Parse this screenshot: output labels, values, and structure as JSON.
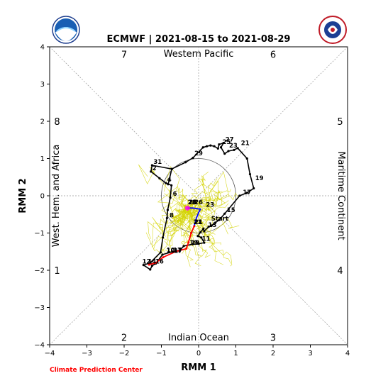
{
  "chart_data": {
    "type": "line",
    "title": "ECMWF | 2021-08-15 to 2021-08-29",
    "xlabel": "RMM 1",
    "ylabel": "RMM 2",
    "xlim": [
      -4,
      4
    ],
    "ylim": [
      -4,
      4
    ],
    "xticks": [
      "−4",
      "−3",
      "−2",
      "−1",
      "0",
      "1",
      "2",
      "3",
      "4"
    ],
    "yticks": [
      "−4",
      "−3",
      "−2",
      "−1",
      "0",
      "1",
      "2",
      "3",
      "4"
    ],
    "phase_numbers": [
      {
        "label": "7",
        "x": -2,
        "y": 3.8
      },
      {
        "label": "6",
        "x": 2,
        "y": 3.8
      },
      {
        "label": "8",
        "x": -3.8,
        "y": 2
      },
      {
        "label": "5",
        "x": 3.8,
        "y": 2
      },
      {
        "label": "1",
        "x": -3.8,
        "y": -2
      },
      {
        "label": "4",
        "x": 3.8,
        "y": -2
      },
      {
        "label": "2",
        "x": -2,
        "y": -3.8
      },
      {
        "label": "3",
        "x": 2,
        "y": -3.8
      }
    ],
    "regions": {
      "top": "Western Pacific",
      "bottom": "Indian Ocean",
      "left": "West. Hem. and Africa",
      "right": "Maritime Continent"
    },
    "unit_circle_radius": 1,
    "observed": {
      "color": "#000000",
      "points": [
        [
          -0.82,
          0.31
        ],
        [
          -0.72,
          0.72
        ],
        [
          -1.25,
          0.82
        ],
        [
          -1.28,
          0.65
        ],
        [
          -1.05,
          0.47
        ],
        [
          -0.88,
          0.34
        ],
        [
          -0.73,
          0.28
        ],
        [
          -0.76,
          -0.05
        ],
        [
          -0.83,
          -0.38
        ],
        [
          -0.85,
          -0.6
        ],
        [
          -0.96,
          -1.12
        ],
        [
          -1.02,
          -1.52
        ],
        [
          -1.3,
          -1.8
        ],
        [
          -1.48,
          -1.86
        ],
        [
          -1.3,
          -1.98
        ],
        [
          -1.25,
          -1.88
        ],
        [
          -1.15,
          -1.82
        ],
        [
          -0.97,
          -1.58
        ],
        [
          -0.7,
          -1.5
        ],
        [
          -0.5,
          -1.46
        ],
        [
          -0.4,
          -1.35
        ],
        [
          -0.15,
          -1.3
        ],
        [
          0.0,
          -1.29
        ],
        [
          0.15,
          -1.26
        ],
        [
          0.07,
          -1.12
        ],
        [
          -0.02,
          -1.08
        ],
        [
          0.05,
          -0.98
        ],
        [
          0.13,
          -0.88
        ],
        [
          0.15,
          -0.95
        ],
        [
          0.27,
          -0.83
        ],
        [
          0.35,
          -0.8
        ],
        [
          0.45,
          -0.72
        ],
        [
          0.55,
          -0.65
        ],
        [
          0.7,
          -0.48
        ],
        [
          1.1,
          0.0
        ],
        [
          1.3,
          0.08
        ],
        [
          1.48,
          0.2
        ],
        [
          1.38,
          0.58
        ],
        [
          1.3,
          1.0
        ],
        [
          1.05,
          1.28
        ],
        [
          0.95,
          1.23
        ],
        [
          0.8,
          1.2
        ],
        [
          0.7,
          1.13
        ],
        [
          0.6,
          1.3
        ],
        [
          0.67,
          1.42
        ],
        [
          0.55,
          1.38
        ],
        [
          0.52,
          1.27
        ],
        [
          0.42,
          1.33
        ],
        [
          0.32,
          1.35
        ],
        [
          0.22,
          1.33
        ],
        [
          0.12,
          1.3
        ],
        [
          -0.15,
          1.02
        ],
        [
          -0.35,
          0.9
        ],
        [
          -0.72,
          0.72
        ]
      ]
    },
    "observed_labels": [
      {
        "label": "31",
        "x": -1.25,
        "y": 0.82
      },
      {
        "label": "2",
        "x": -1.28,
        "y": 0.65
      },
      {
        "label": "4",
        "x": -0.88,
        "y": 0.34
      },
      {
        "label": "6",
        "x": -0.73,
        "y": -0.04
      },
      {
        "label": "8",
        "x": -0.82,
        "y": -0.62
      },
      {
        "label": "10",
        "x": -0.9,
        "y": -1.55
      },
      {
        "label": "12",
        "x": -1.55,
        "y": -1.86
      },
      {
        "label": "14",
        "x": -1.4,
        "y": -1.86
      },
      {
        "label": "16",
        "x": -1.2,
        "y": -1.86
      },
      {
        "label": "17",
        "x": -0.72,
        "y": -1.55
      },
      {
        "label": "19",
        "x": -0.28,
        "y": -1.35
      },
      {
        "label": "21",
        "x": -0.15,
        "y": -0.8
      },
      {
        "label": "11",
        "x": 0.05,
        "y": -1.25
      },
      {
        "label": "13",
        "x": 0.22,
        "y": -0.88
      },
      {
        "label": "15",
        "x": 0.72,
        "y": -0.48
      },
      {
        "label": "17",
        "x": 1.15,
        "y": 0.0
      },
      {
        "label": "19",
        "x": 1.48,
        "y": 0.38
      },
      {
        "label": "21",
        "x": 1.1,
        "y": 1.32
      },
      {
        "label": "23",
        "x": 0.78,
        "y": 1.26
      },
      {
        "label": "25",
        "x": 0.6,
        "y": 1.35
      },
      {
        "label": "27",
        "x": 0.68,
        "y": 1.42
      },
      {
        "label": "29",
        "x": -0.15,
        "y": 1.05
      },
      {
        "label": "23",
        "x": 0.16,
        "y": -0.33
      },
      {
        "label": "28",
        "x": -0.3,
        "y": -0.27
      },
      {
        "label": "26",
        "x": -0.15,
        "y": -0.27
      },
      {
        "label": "Start",
        "x": 0.3,
        "y": -0.7
      }
    ],
    "forecast_week1": {
      "color": "#0000ff",
      "points": [
        [
          -0.3,
          -0.33
        ],
        [
          -0.15,
          -0.33
        ],
        [
          0.05,
          -0.36
        ],
        [
          0.0,
          -0.45
        ],
        [
          -0.07,
          -0.63
        ],
        [
          -0.12,
          -0.82
        ]
      ]
    },
    "forecast_week2": {
      "color": "#ff0000",
      "points": [
        [
          -0.12,
          -0.82
        ],
        [
          -0.2,
          -1.0
        ],
        [
          -0.27,
          -1.25
        ],
        [
          -0.33,
          -1.42
        ],
        [
          -0.62,
          -1.5
        ],
        [
          -0.95,
          -1.65
        ],
        [
          -1.15,
          -1.8
        ],
        [
          -1.33,
          -1.85
        ]
      ]
    },
    "forecast_day_labels": [
      {
        "label": "28",
        "x": -0.33,
        "y": -0.27
      },
      {
        "label": "21",
        "x": -0.18,
        "y": -0.8
      },
      {
        "label": "19",
        "x": -0.24,
        "y": -1.35
      },
      {
        "label": "17",
        "x": -0.7,
        "y": -1.57
      },
      {
        "label": "10",
        "x": -0.9,
        "y": -1.57
      }
    ],
    "ensemble_color": "#d4d400",
    "ensemble_member_count": 50
  },
  "credit": "Climate Prediction Center",
  "logos": {
    "left": "noaa-logo",
    "right": "national-weather-service-logo"
  }
}
